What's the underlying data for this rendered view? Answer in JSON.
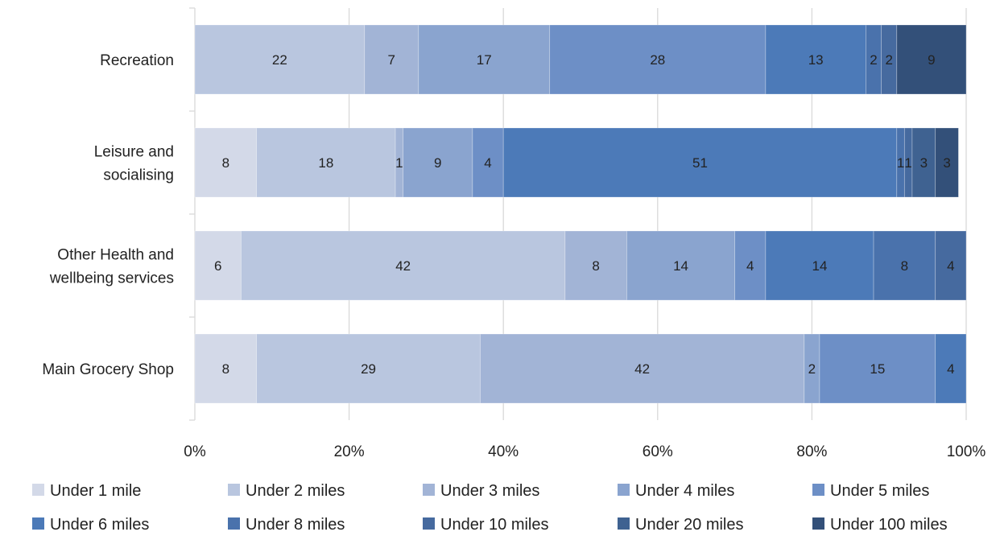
{
  "chart_data": {
    "type": "bar",
    "orientation": "horizontal",
    "stacked": "percent",
    "categories": [
      "Recreation",
      "Leisure and socialising",
      "Other Health and wellbeing services",
      "Main Grocery Shop"
    ],
    "category_label_lines": [
      [
        "Recreation"
      ],
      [
        "Leisure and",
        "socialising"
      ],
      [
        "Other Health and",
        "wellbeing services"
      ],
      [
        "Main Grocery Shop"
      ]
    ],
    "series": [
      {
        "name": "Under 1 mile",
        "color": "#d3d9e8",
        "values": [
          0,
          8,
          6,
          8
        ]
      },
      {
        "name": "Under 2 miles",
        "color": "#b9c6df",
        "values": [
          22,
          18,
          42,
          29
        ]
      },
      {
        "name": "Under 3 miles",
        "color": "#a2b4d6",
        "values": [
          7,
          1,
          8,
          42
        ]
      },
      {
        "name": "Under 4 miles",
        "color": "#8aa4cf",
        "values": [
          17,
          9,
          14,
          2
        ]
      },
      {
        "name": "Under 5 miles",
        "color": "#6d8fc6",
        "values": [
          28,
          4,
          4,
          15
        ]
      },
      {
        "name": "Under 6 miles",
        "color": "#4c7ab8",
        "values": [
          13,
          51,
          14,
          4
        ]
      },
      {
        "name": "Under 8 miles",
        "color": "#4a72ac",
        "values": [
          2,
          1,
          8,
          0
        ]
      },
      {
        "name": "Under 10 miles",
        "color": "#466a9f",
        "values": [
          2,
          1,
          4,
          0
        ]
      },
      {
        "name": "Under 20 miles",
        "color": "#3f6291",
        "values": [
          0,
          3,
          0,
          0
        ]
      },
      {
        "name": "Under 100 miles",
        "color": "#335079",
        "values": [
          9,
          3,
          0,
          0
        ]
      }
    ],
    "x_ticks": [
      "0%",
      "20%",
      "40%",
      "60%",
      "80%",
      "100%"
    ],
    "x_tick_values": [
      0,
      20,
      40,
      60,
      80,
      100
    ],
    "xlim": [
      0,
      100
    ],
    "grid": true,
    "data_labels": true,
    "legend_position": "bottom"
  }
}
